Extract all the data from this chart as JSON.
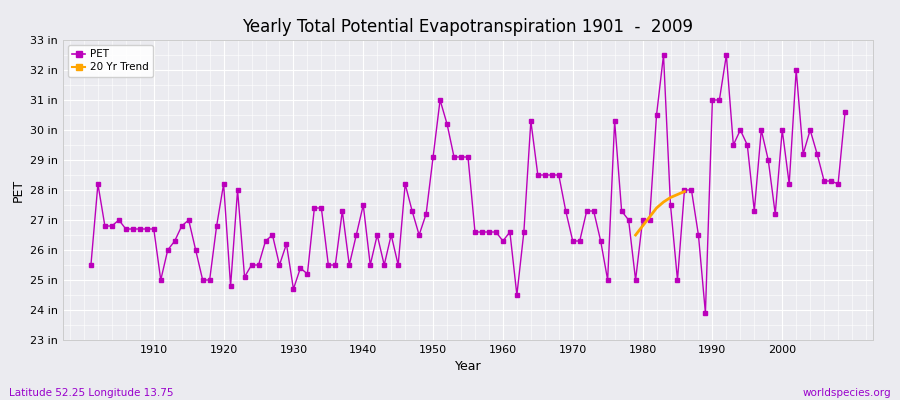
{
  "title": "Yearly Total Potential Evapotranspiration 1901  -  2009",
  "xlabel": "Year",
  "ylabel": "PET",
  "bottom_left_label": "Latitude 52.25 Longitude 13.75",
  "bottom_right_label": "worldspecies.org",
  "ylim_min": 23,
  "ylim_max": 33,
  "xlim_min": 1897,
  "xlim_max": 2013,
  "ytick_labels": [
    "23 in",
    "24 in",
    "25 in",
    "26 in",
    "27 in",
    "28 in",
    "29 in",
    "30 in",
    "31 in",
    "32 in",
    "33 in"
  ],
  "ytick_values": [
    23,
    24,
    25,
    26,
    27,
    28,
    29,
    30,
    31,
    32,
    33
  ],
  "pet_color": "#BB00BB",
  "trend_color": "#FFA500",
  "plot_bg_color": "#EBEBF0",
  "fig_bg_color": "#EBEBF0",
  "grid_color": "#FFFFFF",
  "pet_years": [
    1901,
    1902,
    1903,
    1904,
    1905,
    1906,
    1907,
    1908,
    1909,
    1910,
    1911,
    1912,
    1913,
    1914,
    1915,
    1916,
    1917,
    1918,
    1919,
    1920,
    1921,
    1922,
    1923,
    1924,
    1925,
    1926,
    1927,
    1928,
    1929,
    1930,
    1931,
    1932,
    1933,
    1934,
    1935,
    1936,
    1937,
    1938,
    1939,
    1940,
    1941,
    1942,
    1943,
    1944,
    1945,
    1946,
    1947,
    1948,
    1949,
    1950,
    1951,
    1952,
    1953,
    1954,
    1955,
    1956,
    1957,
    1958,
    1959,
    1960,
    1961,
    1962,
    1963,
    1964,
    1965,
    1966,
    1967,
    1968,
    1969,
    1970,
    1971,
    1972,
    1973,
    1974,
    1975,
    1976,
    1977,
    1978,
    1979,
    1980,
    1981,
    1982,
    1983,
    1984,
    1985,
    1986,
    1987,
    1988,
    1989,
    1990,
    1991,
    1992,
    1993,
    1994,
    1995,
    1996,
    1997,
    1998,
    1999,
    2000,
    2001,
    2002,
    2003,
    2004,
    2005,
    2006,
    2007,
    2008,
    2009
  ],
  "pet_values": [
    25.5,
    28.2,
    26.8,
    26.8,
    27.0,
    26.7,
    26.7,
    26.7,
    26.7,
    26.7,
    25.0,
    26.0,
    26.3,
    26.8,
    27.0,
    26.0,
    25.0,
    25.0,
    26.8,
    28.2,
    24.8,
    28.0,
    25.1,
    25.5,
    25.5,
    26.3,
    26.5,
    25.5,
    26.2,
    24.7,
    25.4,
    25.2,
    27.4,
    27.4,
    25.5,
    25.5,
    27.3,
    25.5,
    26.5,
    27.5,
    25.5,
    26.5,
    25.5,
    26.5,
    25.5,
    28.2,
    27.3,
    26.5,
    27.2,
    29.1,
    31.0,
    30.2,
    29.1,
    29.1,
    29.1,
    26.6,
    26.6,
    26.6,
    26.6,
    26.3,
    26.6,
    24.5,
    26.6,
    30.3,
    28.5,
    28.5,
    28.5,
    28.5,
    27.3,
    26.3,
    26.3,
    27.3,
    27.3,
    26.3,
    25.0,
    30.3,
    27.3,
    27.0,
    25.0,
    27.0,
    27.0,
    30.5,
    32.5,
    27.5,
    25.0,
    28.0,
    28.0,
    26.5,
    23.9,
    31.0,
    31.0,
    32.5,
    29.5,
    30.0,
    29.5,
    27.3,
    30.0,
    29.0,
    27.2,
    30.0,
    28.2,
    32.0,
    29.2,
    30.0,
    29.2,
    28.3,
    28.3,
    28.2,
    30.6
  ],
  "trend_years": [
    1979,
    1980,
    1981,
    1982,
    1983,
    1984,
    1985,
    1986
  ],
  "trend_values": [
    26.5,
    26.8,
    27.1,
    27.4,
    27.6,
    27.75,
    27.85,
    27.95
  ],
  "xtick_values": [
    1910,
    1920,
    1930,
    1940,
    1950,
    1960,
    1970,
    1980,
    1990,
    2000
  ]
}
